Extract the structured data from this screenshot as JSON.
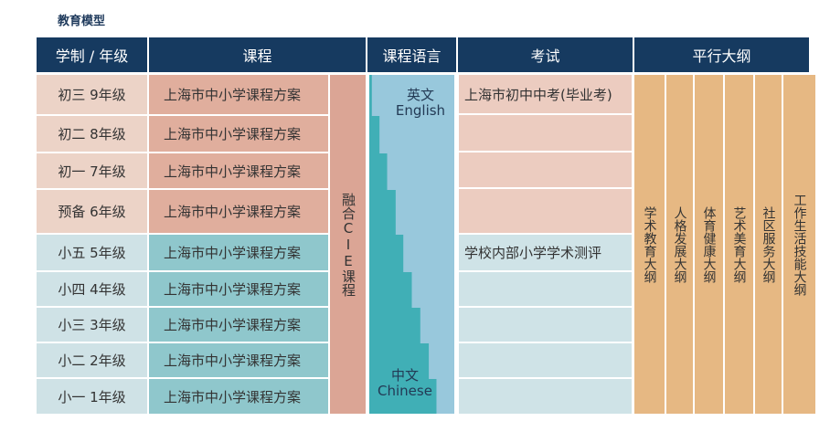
{
  "title": "教育模型",
  "headers": {
    "grade": "学制 / 年级",
    "course": "课程",
    "language": "课程语言",
    "exam": "考试",
    "syllabus": "平行大纲"
  },
  "grades": [
    "初三 9年级",
    "初二 8年级",
    "初一 7年级",
    "预备 6年级",
    "小五 5年级",
    "小四 4年级",
    "小三 3年级",
    "小二 2年级",
    "小一 1年级"
  ],
  "course_name": "上海市中小学课程方案",
  "fusion_label": "融合CIE课程",
  "language": {
    "english_cn": "英文",
    "english_en": "English",
    "chinese_cn": "中文",
    "chinese_en": "Chinese",
    "english_share_by_row": [
      0.97,
      0.88,
      0.79,
      0.69,
      0.6,
      0.5,
      0.4,
      0.3,
      0.21
    ]
  },
  "exams": {
    "middle": "上海市初中中考(毕业考)",
    "primary": "学校内部小学学术测评"
  },
  "syllabi": [
    "学术教育大纲",
    "人格发展大纲",
    "体育健康大纲",
    "艺术美育大纲",
    "社区服务大纲",
    "工作生活技能大纲"
  ],
  "colors": {
    "header": "#163a60",
    "middle_grade": "#ecd3c7",
    "middle_course": "#e0ae9d",
    "primary_grade": "#cfe2e6",
    "primary_course": "#8fc7cc",
    "fusion": "#dba595",
    "english": "#98c8dc",
    "chinese": "#40afb6",
    "exam_middle": "#ecccc0",
    "exam_primary": "#cfe3e7",
    "syllabus": "#e6b883"
  }
}
